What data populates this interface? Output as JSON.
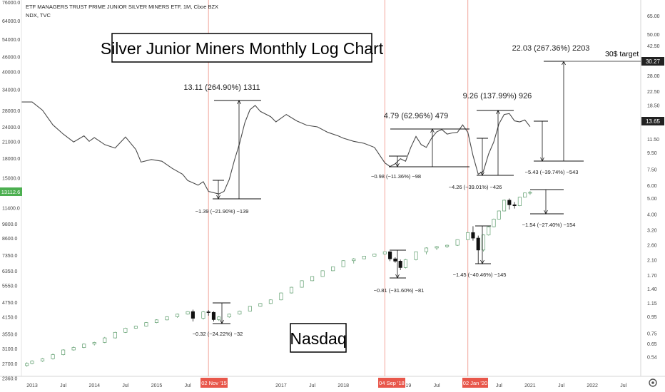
{
  "header": {
    "title": "ETF MANAGERS TRUST PRIME JUNIOR SILVER MINERS ETF, 1M, Cboe BZX",
    "subtitle": "NDX, TVC"
  },
  "labels": {
    "chart_title": "Silver Junior Miners Monthly Log Chart",
    "nasdaq": "Nasdaq",
    "target": "30$ target"
  },
  "colors": {
    "silver_line": "#4a4a4a",
    "candle_up_border": "#5f9e6e",
    "candle_down": "#111111",
    "event_line": "#f2a59b",
    "event_tag": "#e8574b",
    "nasdaq_badge": "#4caf50",
    "price_badge": "#222222"
  },
  "chart_data": [
    {
      "type": "line",
      "series": [
        {
          "values": [
            [
              "2012-11",
              19.3
            ],
            [
              "2013-01",
              19.3
            ],
            [
              "2013-03",
              17.2
            ],
            [
              "2013-05",
              14.0
            ],
            [
              "2013-07",
              12.3
            ],
            [
              "2013-09",
              11.0
            ],
            [
              "2013-11",
              12.0
            ],
            [
              "2013-12",
              11.1
            ],
            [
              "2014-01",
              11.7
            ],
            [
              "2014-03",
              10.6
            ],
            [
              "2014-05",
              10.1
            ],
            [
              "2014-07",
              11.8
            ],
            [
              "2014-09",
              9.9
            ],
            [
              "2014-10",
              8.3
            ],
            [
              "2014-12",
              8.6
            ],
            [
              "2015-02",
              8.4
            ],
            [
              "2015-04",
              7.6
            ],
            [
              "2015-06",
              7.0
            ],
            [
              "2015-07",
              6.4
            ],
            [
              "2015-08",
              6.2
            ],
            [
              "2015-09",
              6.0
            ],
            [
              "2015-10",
              6.3
            ],
            [
              "2015-11",
              5.5
            ],
            [
              "2016-01",
              5.3
            ],
            [
              "2016-02",
              5.5
            ],
            [
              "2016-03",
              6.5
            ],
            [
              "2016-04",
              8.5
            ],
            [
              "2016-05",
              10.8
            ],
            [
              "2016-06",
              14.4
            ],
            [
              "2016-07",
              17.3
            ],
            [
              "2016-08",
              18.4
            ],
            [
              "2016-09",
              16.9
            ],
            [
              "2016-11",
              15.7
            ],
            [
              "2016-12",
              14.6
            ],
            [
              "2017-02",
              16.2
            ],
            [
              "2017-04",
              14.8
            ],
            [
              "2017-06",
              13.9
            ],
            [
              "2017-08",
              13.6
            ],
            [
              "2017-10",
              12.6
            ],
            [
              "2017-12",
              12.0
            ],
            [
              "2018-01",
              11.6
            ],
            [
              "2018-03",
              11.1
            ],
            [
              "2018-05",
              10.8
            ],
            [
              "2018-07",
              10.2
            ],
            [
              "2018-09",
              8.2
            ],
            [
              "2018-10",
              7.8
            ],
            [
              "2018-11",
              8.1
            ],
            [
              "2018-12",
              8.7
            ],
            [
              "2019-01",
              8.4
            ],
            [
              "2019-02",
              10.2
            ],
            [
              "2019-03",
              11.9
            ],
            [
              "2019-04",
              10.6
            ],
            [
              "2019-05",
              10.2
            ],
            [
              "2019-06",
              11.6
            ],
            [
              "2019-07",
              12.7
            ],
            [
              "2019-08",
              13.1
            ],
            [
              "2019-09",
              12.3
            ],
            [
              "2019-10",
              12.5
            ],
            [
              "2019-11",
              12.6
            ],
            [
              "2019-12",
              14.0
            ],
            [
              "2020-01",
              12.6
            ],
            [
              "2020-02",
              9.1
            ],
            [
              "2020-03",
              7.0
            ],
            [
              "2020-04",
              7.3
            ],
            [
              "2020-05",
              9.3
            ],
            [
              "2020-06",
              11.0
            ],
            [
              "2020-07",
              14.2
            ],
            [
              "2020-08",
              16.2
            ],
            [
              "2020-09",
              16.4
            ],
            [
              "2020-10",
              14.8
            ],
            [
              "2020-11",
              14.6
            ],
            [
              "2020-12",
              15.0
            ],
            [
              "2021-01",
              13.65
            ]
          ]
        }
      ],
      "y_axis_right": {
        "scale": "log",
        "tick_labels": [
          "65.00",
          "50.00",
          "42.50",
          "34.50",
          "28.00",
          "22.50",
          "18.50",
          "15.00",
          "13.65",
          "11.50",
          "9.50",
          "7.50",
          "6.00",
          "5.00",
          "4.00",
          "3.20",
          "2.60",
          "2.10",
          "1.70",
          "1.40",
          "1.15",
          "0.95",
          "0.75",
          "0.65",
          "0.54"
        ],
        "last_price": "13.65",
        "target_price": "30.27"
      },
      "annotations": [
        {
          "text": "13.11 (264.90%) 1311",
          "kind": "rise"
        },
        {
          "text": "−1.39 (−21.90%) −139",
          "kind": "drop"
        },
        {
          "text": "4.79 (62.96%) 479",
          "kind": "rise"
        },
        {
          "text": "−0.98 (−11.36%) −98",
          "kind": "drop"
        },
        {
          "text": "9.26 (137.99%) 926",
          "kind": "rise"
        },
        {
          "text": "−4.26 (−39.01%) −426",
          "kind": "drop"
        },
        {
          "text": "22.03 (267.36%) 2203",
          "kind": "rise"
        },
        {
          "text": "−5.43 (−39.74%) −543",
          "kind": "drop"
        }
      ]
    },
    {
      "type": "candlestick",
      "series": [
        {
          "values_ohlc": [
            [
              "2012-12",
              2650,
              2730,
              2620,
              2700
            ],
            [
              "2013-01",
              2700,
              2780,
              2680,
              2760
            ],
            [
              "2013-03",
              2760,
              2840,
              2740,
              2820
            ],
            [
              "2013-05",
              2820,
              2960,
              2800,
              2930
            ],
            [
              "2013-07",
              2930,
              3080,
              2910,
              3060
            ],
            [
              "2013-09",
              3060,
              3160,
              3040,
              3130
            ],
            [
              "2013-11",
              3130,
              3250,
              3110,
              3230
            ],
            [
              "2014-01",
              3230,
              3300,
              3190,
              3280
            ],
            [
              "2014-03",
              3280,
              3450,
              3260,
              3420
            ],
            [
              "2014-05",
              3420,
              3620,
              3400,
              3600
            ],
            [
              "2014-07",
              3600,
              3760,
              3580,
              3740
            ],
            [
              "2014-09",
              3740,
              3830,
              3720,
              3810
            ],
            [
              "2014-11",
              3810,
              3960,
              3790,
              3940
            ],
            [
              "2015-01",
              3940,
              4060,
              3920,
              4040
            ],
            [
              "2015-03",
              4040,
              4180,
              4020,
              4160
            ],
            [
              "2015-05",
              4160,
              4280,
              4120,
              4260
            ],
            [
              "2015-07",
              4260,
              4380,
              4240,
              4360
            ],
            [
              "2015-08",
              4360,
              4440,
              3980,
              4100
            ],
            [
              "2015-10",
              4100,
              4380,
              4050,
              4350
            ],
            [
              "2015-11",
              4350,
              4420,
              4200,
              4330
            ],
            [
              "2015-12",
              4330,
              4370,
              3980,
              4050
            ],
            [
              "2016-01",
              4050,
              4180,
              4000,
              4150
            ],
            [
              "2016-03",
              4150,
              4280,
              4120,
              4260
            ],
            [
              "2016-05",
              4260,
              4400,
              4240,
              4380
            ],
            [
              "2016-07",
              4380,
              4600,
              4360,
              4580
            ],
            [
              "2016-09",
              4580,
              4720,
              4560,
              4700
            ],
            [
              "2016-11",
              4700,
              4880,
              4680,
              4860
            ],
            [
              "2017-01",
              4860,
              5200,
              4840,
              5180
            ],
            [
              "2017-03",
              5180,
              5480,
              5160,
              5460
            ],
            [
              "2017-05",
              5460,
              5820,
              5440,
              5800
            ],
            [
              "2017-07",
              5800,
              6050,
              5780,
              6030
            ],
            [
              "2017-09",
              6030,
              6380,
              6010,
              6360
            ],
            [
              "2017-11",
              6360,
              6620,
              6340,
              6600
            ],
            [
              "2018-01",
              6600,
              7000,
              6580,
              6980
            ],
            [
              "2018-03",
              6980,
              7150,
              6800,
              7100
            ],
            [
              "2018-05",
              7100,
              7300,
              7080,
              7280
            ],
            [
              "2018-07",
              7280,
              7450,
              7260,
              7430
            ],
            [
              "2018-09",
              7430,
              7600,
              7400,
              7580
            ],
            [
              "2018-10",
              7580,
              7620,
              6950,
              7100
            ],
            [
              "2018-11",
              7100,
              7200,
              6850,
              6950
            ],
            [
              "2018-12",
              6950,
              7050,
              6400,
              6550
            ],
            [
              "2019-01",
              6550,
              7100,
              6500,
              7050
            ],
            [
              "2019-03",
              7050,
              7600,
              7000,
              7580
            ],
            [
              "2019-05",
              7580,
              7900,
              7400,
              7850
            ],
            [
              "2019-07",
              7850,
              8000,
              7700,
              7950
            ],
            [
              "2019-09",
              7950,
              8100,
              7850,
              8050
            ],
            [
              "2019-11",
              8050,
              8500,
              8000,
              8480
            ],
            [
              "2020-01",
              8480,
              9100,
              8450,
              9050
            ],
            [
              "2020-02",
              9050,
              9600,
              8400,
              8600
            ],
            [
              "2020-03",
              8600,
              8800,
              6800,
              7700
            ],
            [
              "2020-04",
              7700,
              8900,
              7600,
              8850
            ],
            [
              "2020-05",
              8850,
              9600,
              8800,
              9550
            ],
            [
              "2020-06",
              9550,
              10300,
              9500,
              10250
            ],
            [
              "2020-07",
              10250,
              11100,
              10200,
              11050
            ],
            [
              "2020-08",
              11050,
              12300,
              11000,
              12200
            ],
            [
              "2020-09",
              12200,
              12400,
              11200,
              11700
            ],
            [
              "2020-10",
              11700,
              12000,
              11300,
              11600
            ],
            [
              "2020-11",
              11600,
              12600,
              11550,
              12550
            ],
            [
              "2020-12",
              12550,
              13100,
              12500,
              13050
            ],
            [
              "2021-01",
              13050,
              13300,
              12800,
              13112.6
            ]
          ]
        }
      ],
      "y_axis_left": {
        "scale": "log",
        "tick_labels": [
          "76000.0",
          "64000.0",
          "54000.0",
          "46000.0",
          "40000.0",
          "34000.0",
          "28000.0",
          "24000.0",
          "21000.0",
          "18000.0",
          "15000.0",
          "13112.6",
          "11400.0",
          "9800.0",
          "8600.0",
          "7350.0",
          "6350.0",
          "5550.0",
          "4750.0",
          "4150.0",
          "3550.0",
          "3100.0",
          "2700.0",
          "2360.0"
        ],
        "last_price": "13112.6"
      },
      "annotations": [
        {
          "text": "−0.32 (−24.22%) −32",
          "kind": "drop"
        },
        {
          "text": "−0.81 (−31.60%) −81",
          "kind": "drop"
        },
        {
          "text": "−1.45 (−40.46%) −145",
          "kind": "drop"
        },
        {
          "text": "−1.54 (−27.40%) −154",
          "kind": "drop"
        }
      ]
    }
  ],
  "x_axis": {
    "tick_labels": [
      "2013",
      "Jul",
      "2014",
      "Jul",
      "2015",
      "Jul",
      "6",
      "2017",
      "Jul",
      "2018",
      "2019",
      "Jul",
      "Jul",
      "2021",
      "Jul",
      "2022",
      "Jul"
    ],
    "event_tags": [
      "02 Nov '15",
      "04 Sep '18",
      "02 Jan '20"
    ]
  }
}
